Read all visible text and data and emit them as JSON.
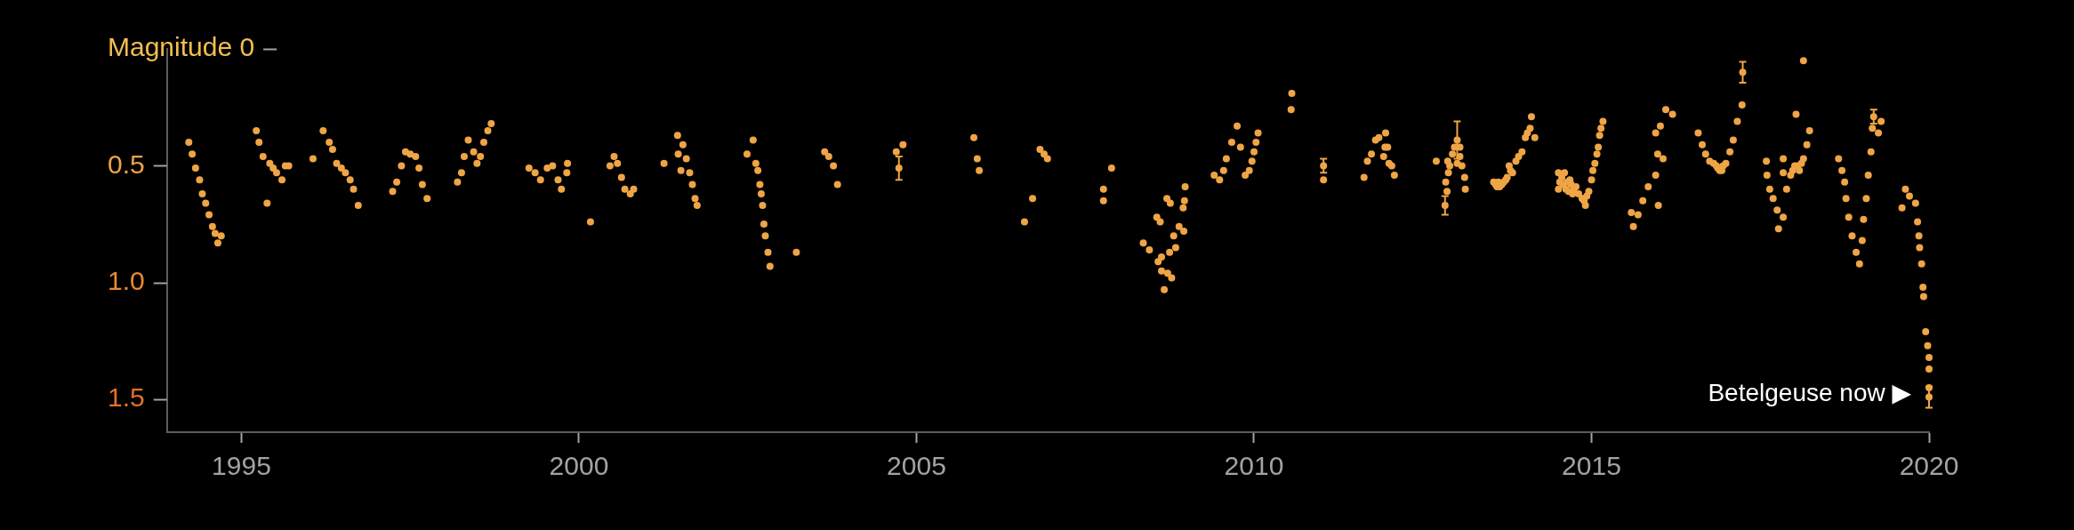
{
  "chart_data": {
    "type": "scatter",
    "color": "#efa545",
    "marker": "circle",
    "xlim": [
      1993.9,
      2020
    ],
    "xticks": [
      1995,
      2000,
      2005,
      2010,
      2015,
      2020
    ],
    "ylim": [
      1.64,
      0
    ],
    "yticks": [
      {
        "value": 0,
        "label": "Magnitude 0"
      },
      0.5,
      {
        "value": 1,
        "label": "1.0"
      },
      1.5
    ],
    "annotations": [
      {
        "text": "Betelgeuse now ▶",
        "x": 2020.0,
        "y": 1.49
      }
    ],
    "x": [
      1994.22,
      1994.27,
      1994.32,
      1994.38,
      1994.42,
      1994.47,
      1994.52,
      1994.57,
      1994.61,
      1994.65,
      1994.7,
      1995.22,
      1995.26,
      1995.32,
      1995.38,
      1995.42,
      1995.47,
      1995.52,
      1995.6,
      1995.65,
      1995.7,
      1996.06,
      1996.21,
      1996.3,
      1996.35,
      1996.41,
      1996.48,
      1996.54,
      1996.61,
      1996.66,
      1996.73,
      1997.24,
      1997.3,
      1997.37,
      1997.43,
      1997.5,
      1997.58,
      1997.63,
      1997.68,
      1997.75,
      1998.2,
      1998.26,
      1998.3,
      1998.36,
      1998.44,
      1998.49,
      1998.54,
      1998.59,
      1998.65,
      1998.7,
      1999.26,
      1999.35,
      1999.43,
      1999.53,
      1999.61,
      1999.69,
      1999.74,
      1999.82,
      1999.83,
      2000.17,
      2000.46,
      2000.52,
      2000.57,
      2000.63,
      2000.68,
      2000.76,
      2000.81,
      2001.26,
      2001.46,
      2001.47,
      2001.51,
      2001.54,
      2001.59,
      2001.64,
      2001.68,
      2001.72,
      2001.75,
      2002.49,
      2002.58,
      2002.62,
      2002.65,
      2002.68,
      2002.7,
      2002.72,
      2002.74,
      2002.76,
      2002.8,
      2002.83,
      2003.22,
      2003.64,
      2003.7,
      2003.77,
      2003.83,
      2004.7,
      2004.74,
      2004.8,
      2005.85,
      2005.9,
      2005.93,
      2006.6,
      2006.72,
      2006.83,
      2006.89,
      2006.94,
      2007.77,
      2007.77,
      2007.89,
      2008.36,
      2008.45,
      2008.56,
      2008.58,
      2008.61,
      2008.63,
      2008.63,
      2008.67,
      2008.71,
      2008.72,
      2008.75,
      2008.76,
      2008.78,
      2008.81,
      2008.84,
      2008.89,
      2008.95,
      2008.96,
      2008.97,
      2008.98,
      2009.41,
      2009.49,
      2009.55,
      2009.59,
      2009.67,
      2009.75,
      2009.8,
      2009.87,
      2009.93,
      2009.97,
      2010.0,
      2010.03,
      2010.06,
      2010.55,
      2010.56,
      2011.03,
      2011.03,
      2011.63,
      2011.68,
      2011.74,
      2011.8,
      2011.85,
      2011.92,
      2011.94,
      2011.95,
      2011.98,
      2012.0,
      2012.04,
      2012.08,
      2012.7,
      2012.83,
      2012.84,
      2012.86,
      2012.87,
      2012.88,
      2012.94,
      2013.01,
      2013.01,
      2013.05,
      2013.05,
      2013.12,
      2013.13,
      2013.55,
      2013.6,
      2013.64,
      2013.7,
      2013.73,
      2013.78,
      2013.83,
      2013.88,
      2013.97,
      2014.02,
      2014.09,
      2014.11,
      2014.16,
      2014.51,
      2014.51,
      2014.56,
      2014.6,
      2014.62,
      2014.68,
      2014.72,
      2014.77,
      2014.86,
      2014.91,
      2014.96,
      2015.0,
      2015.05,
      2015.1,
      2015.12,
      2015.17,
      2015.59,
      2015.62,
      2015.69,
      2015.76,
      2015.84,
      2015.95,
      2015.95,
      2015.98,
      2015.99,
      2016.02,
      2016.06,
      2016.1,
      2016.2,
      2016.58,
      2016.64,
      2016.69,
      2016.75,
      2016.81,
      2016.9,
      2016.99,
      2017.05,
      2017.1,
      2017.16,
      2017.23,
      2017.24,
      2017.59,
      2017.6,
      2017.64,
      2017.69,
      2017.75,
      2017.77,
      2017.84,
      2017.84,
      2017.84,
      2017.89,
      2017.95,
      2018.01,
      2018.03,
      2018.08,
      2018.14,
      2018.14,
      2018.19,
      2018.23,
      2018.66,
      2018.71,
      2018.75,
      2018.77,
      2018.81,
      2018.86,
      2018.92,
      2018.97,
      2019.01,
      2019.03,
      2019.07,
      2019.1,
      2019.14,
      2019.16,
      2019.18,
      2019.25,
      2019.29,
      2019.6,
      2019.65,
      2019.71,
      2019.8,
      2019.83,
      2019.85,
      2019.86,
      2019.89,
      2019.91,
      2019.92,
      2019.95,
      2019.98,
      2020.0,
      2020.0,
      2020.0,
      2020.0,
      2013.58,
      2013.62,
      2013.67,
      2013.75,
      2013.8,
      2013.92,
      2014.05,
      2014.53,
      2014.58,
      2014.64,
      2014.66,
      2014.7,
      2014.74,
      2014.81,
      2014.89,
      2014.93,
      2015.02,
      2015.08,
      2015.14,
      2016.85,
      2016.87,
      2016.95,
      2016.93,
      2012.9,
      2012.97,
      2013.08,
      2017.98,
      2018.05,
      2018.11
    ],
    "values": [
      0.4,
      0.45,
      0.51,
      0.56,
      0.62,
      0.66,
      0.71,
      0.76,
      0.79,
      0.83,
      0.8,
      0.35,
      0.4,
      0.46,
      0.66,
      0.49,
      0.51,
      0.53,
      0.56,
      0.5,
      0.5,
      0.47,
      0.35,
      0.4,
      0.43,
      0.49,
      0.51,
      0.53,
      0.56,
      0.6,
      0.67,
      0.61,
      0.57,
      0.5,
      0.44,
      0.45,
      0.46,
      0.51,
      0.58,
      0.64,
      0.57,
      0.53,
      0.46,
      0.39,
      0.44,
      0.49,
      0.46,
      0.4,
      0.35,
      0.32,
      0.51,
      0.53,
      0.56,
      0.51,
      0.5,
      0.56,
      0.6,
      0.53,
      0.49,
      0.74,
      0.5,
      0.46,
      0.49,
      0.55,
      0.6,
      0.62,
      0.6,
      0.49,
      0.37,
      0.45,
      0.52,
      0.41,
      0.47,
      0.53,
      0.58,
      0.64,
      0.67,
      0.45,
      0.39,
      0.49,
      0.52,
      0.58,
      0.62,
      0.67,
      0.75,
      0.8,
      0.87,
      0.93,
      0.87,
      0.44,
      0.46,
      0.5,
      0.58,
      0.44,
      0.51,
      0.41,
      0.38,
      0.47,
      0.52,
      0.74,
      0.64,
      0.43,
      0.45,
      0.47,
      0.6,
      0.65,
      0.51,
      0.83,
      0.86,
      0.72,
      0.91,
      0.74,
      0.95,
      0.89,
      1.03,
      0.64,
      0.96,
      0.87,
      0.66,
      0.98,
      0.8,
      0.85,
      0.76,
      0.68,
      0.78,
      0.65,
      0.59,
      0.54,
      0.56,
      0.52,
      0.47,
      0.4,
      0.33,
      0.42,
      0.54,
      0.52,
      0.48,
      0.44,
      0.4,
      0.36,
      0.26,
      0.19,
      0.5,
      0.56,
      0.55,
      0.48,
      0.45,
      0.39,
      0.38,
      0.46,
      0.42,
      0.36,
      0.42,
      0.49,
      0.5,
      0.54,
      0.48,
      0.67,
      0.57,
      0.61,
      0.48,
      0.53,
      0.45,
      0.39,
      0.49,
      0.42,
      0.46,
      0.55,
      0.6,
      0.57,
      0.59,
      0.59,
      0.57,
      0.56,
      0.5,
      0.53,
      0.48,
      0.44,
      0.38,
      0.34,
      0.29,
      0.38,
      0.53,
      0.6,
      0.55,
      0.53,
      0.6,
      0.56,
      0.62,
      0.59,
      0.64,
      0.67,
      0.61,
      0.56,
      0.49,
      0.42,
      0.37,
      0.31,
      0.7,
      0.76,
      0.71,
      0.65,
      0.59,
      0.54,
      0.36,
      0.45,
      0.67,
      0.33,
      0.47,
      0.26,
      0.28,
      0.36,
      0.41,
      0.45,
      0.48,
      0.49,
      0.52,
      0.49,
      0.44,
      0.39,
      0.31,
      0.24,
      0.1,
      0.48,
      0.54,
      0.6,
      0.64,
      0.69,
      0.77,
      0.72,
      0.53,
      0.47,
      0.6,
      0.54,
      0.5,
      0.28,
      0.52,
      0.47,
      0.05,
      0.41,
      0.35,
      0.47,
      0.52,
      0.57,
      0.64,
      0.72,
      0.8,
      0.87,
      0.92,
      0.82,
      0.73,
      0.64,
      0.54,
      0.44,
      0.34,
      0.29,
      0.36,
      0.31,
      0.68,
      0.6,
      0.63,
      0.66,
      0.74,
      0.8,
      0.85,
      0.92,
      1.02,
      1.06,
      1.21,
      1.27,
      1.32,
      1.37,
      1.45,
      1.49,
      0.58,
      0.57,
      0.58,
      0.55,
      0.52,
      0.46,
      0.36,
      0.57,
      0.58,
      0.57,
      0.61,
      0.58,
      0.6,
      0.62,
      0.65,
      0.63,
      0.52,
      0.45,
      0.34,
      0.5,
      0.51,
      0.5,
      0.52,
      0.5,
      0.42,
      0.5,
      0.52,
      0.5,
      0.49
    ],
    "errors": [
      null,
      null,
      null,
      null,
      null,
      null,
      null,
      null,
      null,
      null,
      null,
      null,
      null,
      null,
      null,
      null,
      null,
      null,
      null,
      null,
      null,
      null,
      null,
      null,
      null,
      null,
      null,
      null,
      null,
      null,
      null,
      null,
      null,
      null,
      null,
      null,
      null,
      null,
      null,
      null,
      null,
      null,
      null,
      null,
      null,
      null,
      null,
      null,
      null,
      null,
      null,
      null,
      null,
      null,
      null,
      null,
      null,
      null,
      null,
      null,
      null,
      null,
      null,
      null,
      null,
      null,
      null,
      null,
      null,
      null,
      null,
      null,
      null,
      null,
      null,
      null,
      null,
      null,
      null,
      null,
      null,
      null,
      null,
      null,
      null,
      null,
      null,
      null,
      null,
      null,
      null,
      null,
      null,
      null,
      0.05,
      null,
      null,
      null,
      null,
      null,
      null,
      null,
      null,
      null,
      null,
      null,
      null,
      null,
      null,
      null,
      null,
      null,
      null,
      null,
      null,
      null,
      null,
      null,
      null,
      null,
      null,
      null,
      null,
      null,
      null,
      null,
      null,
      null,
      null,
      null,
      null,
      null,
      null,
      null,
      null,
      null,
      null,
      null,
      null,
      null,
      null,
      null,
      0.03,
      null,
      null,
      null,
      null,
      null,
      null,
      null,
      null,
      null,
      null,
      null,
      null,
      null,
      null,
      0.04,
      null,
      null,
      null,
      null,
      null,
      0.08,
      null,
      null,
      null,
      null,
      null,
      null,
      null,
      null,
      null,
      null,
      null,
      null,
      null,
      null,
      null,
      null,
      null,
      null,
      null,
      null,
      null,
      null,
      null,
      null,
      null,
      null,
      null,
      null,
      null,
      null,
      null,
      null,
      null,
      null,
      null,
      null,
      null,
      null,
      null,
      null,
      null,
      null,
      null,
      null,
      null,
      null,
      null,
      null,
      null,
      null,
      null,
      null,
      null,
      null,
      null,
      null,
      null,
      null,
      0.045,
      null,
      null,
      null,
      null,
      null,
      null,
      null,
      null,
      null,
      null,
      null,
      null,
      null,
      null,
      null,
      null,
      null,
      null,
      null,
      null,
      null,
      null,
      null,
      null,
      null,
      null,
      null,
      null,
      null,
      null,
      null,
      null,
      0.03,
      null,
      null,
      null,
      null,
      null,
      null,
      null,
      null,
      null,
      null,
      null,
      null,
      null,
      null,
      null,
      null,
      null,
      0.045,
      null,
      null,
      null,
      null,
      null,
      null,
      null,
      null,
      null,
      null,
      null,
      null,
      null,
      null,
      null,
      null,
      null,
      null,
      null,
      null,
      null,
      null,
      null,
      null,
      null,
      null,
      null,
      null,
      null
    ]
  }
}
